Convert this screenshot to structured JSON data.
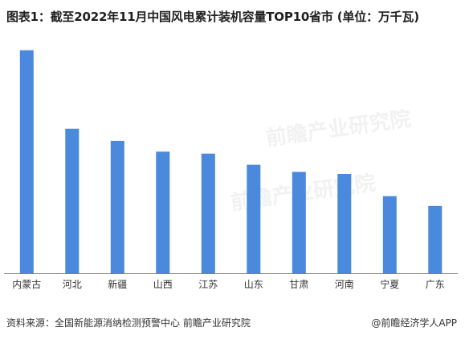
{
  "title": "图表1：截至2022年11月中国风电累计装机容量TOP10省市 (单位：万千瓦)",
  "source": "资料来源：全国新能源消纳检测预警中心 前瞻产业研究院",
  "brand": "@前瞻经济学人APP",
  "watermark": "前瞻产业研究院",
  "colors": {
    "bar": "#4A89DC",
    "axis": "#7f7f7f"
  },
  "chart_data": {
    "type": "bar",
    "title": "图表1：截至2022年11月中国风电累计装机容量TOP10省市 (单位：万千瓦)",
    "xlabel": "",
    "ylabel": "",
    "categories": [
      "内蒙古",
      "河北",
      "新疆",
      "山西",
      "江苏",
      "山东",
      "甘肃",
      "河南",
      "宁夏",
      "广东"
    ],
    "values": [
      4400,
      2850,
      2610,
      2400,
      2360,
      2140,
      2000,
      1960,
      1520,
      1330
    ],
    "ylim": [
      0,
      4600
    ],
    "grid": false,
    "legend": "none"
  }
}
